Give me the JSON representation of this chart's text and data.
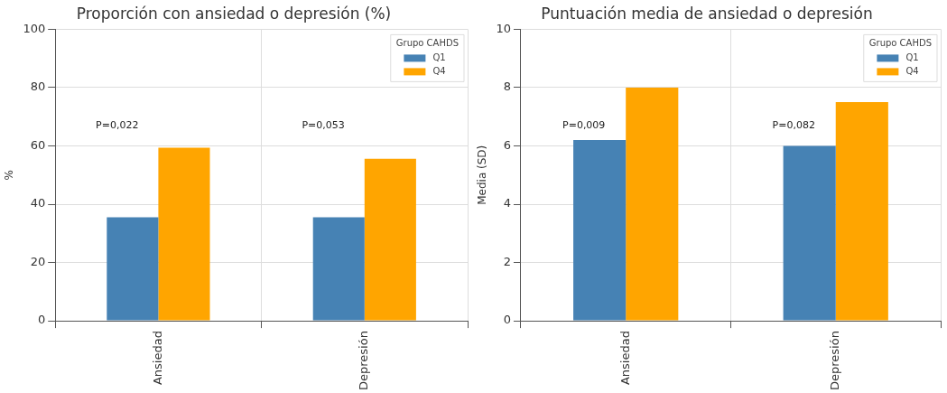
{
  "chart_data": [
    {
      "type": "bar",
      "title": "Proporción con ansiedad o depresión (%)",
      "ylabel": "%",
      "categories": [
        "Ansiedad",
        "Depresión"
      ],
      "series": [
        {
          "name": "Q1",
          "color": "#4682b4",
          "values": [
            35.5,
            35.5
          ]
        },
        {
          "name": "Q4",
          "color": "#ffa500",
          "values": [
            59.4,
            55.6
          ]
        }
      ],
      "ylim": [
        0,
        100
      ],
      "yticks": [
        0,
        20,
        40,
        60,
        80,
        100
      ],
      "grid": true,
      "legend": "top right",
      "legend_title": "Grupo CAHDS",
      "annotations": [
        "P=0,022",
        "P=0,053"
      ]
    },
    {
      "type": "bar",
      "title": "Puntuación media de ansiedad o depresión",
      "ylabel": "Media (SD)",
      "categories": [
        "Ansiedad",
        "Depresión"
      ],
      "series": [
        {
          "name": "Q1",
          "color": "#4682b4",
          "values": [
            6.2,
            6.0
          ]
        },
        {
          "name": "Q4",
          "color": "#ffa500",
          "values": [
            8.0,
            7.5
          ]
        }
      ],
      "ylim": [
        0,
        10
      ],
      "yticks": [
        0,
        2,
        4,
        6,
        8,
        10
      ],
      "grid": true,
      "legend": "top right",
      "legend_title": "Grupo CAHDS",
      "annotations": [
        "P=0,009",
        "P=0,082"
      ]
    }
  ]
}
